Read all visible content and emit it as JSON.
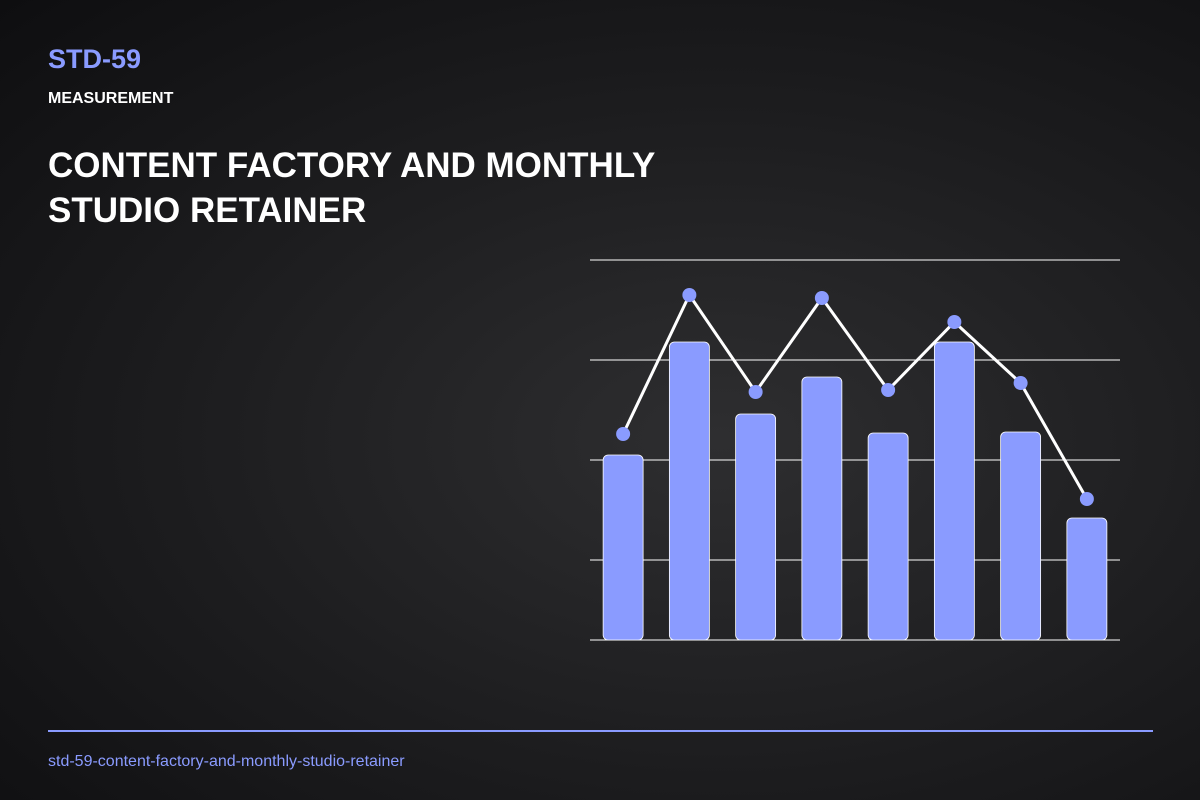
{
  "header": {
    "code": "STD-59",
    "label": "MEASUREMENT",
    "title": "CONTENT FACTORY AND MONTHLY STUDIO RETAINER"
  },
  "chart_data": {
    "type": "combo",
    "categories": [
      null,
      null,
      null,
      null,
      null,
      null,
      null,
      null
    ],
    "series": [
      {
        "type": "bar",
        "color": "#8a9bff",
        "values": [
          185,
          298,
          226,
          263,
          207,
          298,
          208,
          122
        ]
      },
      {
        "type": "line",
        "color": "#ffffff",
        "marker_color": "#8a9bff",
        "values": [
          206,
          345,
          248,
          342,
          250,
          318,
          257,
          141
        ]
      }
    ],
    "ylim": [
      0,
      380
    ],
    "yticks": [
      80,
      180,
      280,
      380
    ],
    "grid": true
  },
  "footer": {
    "slug": "std-59-content-factory-and-monthly-studio-retainer"
  }
}
